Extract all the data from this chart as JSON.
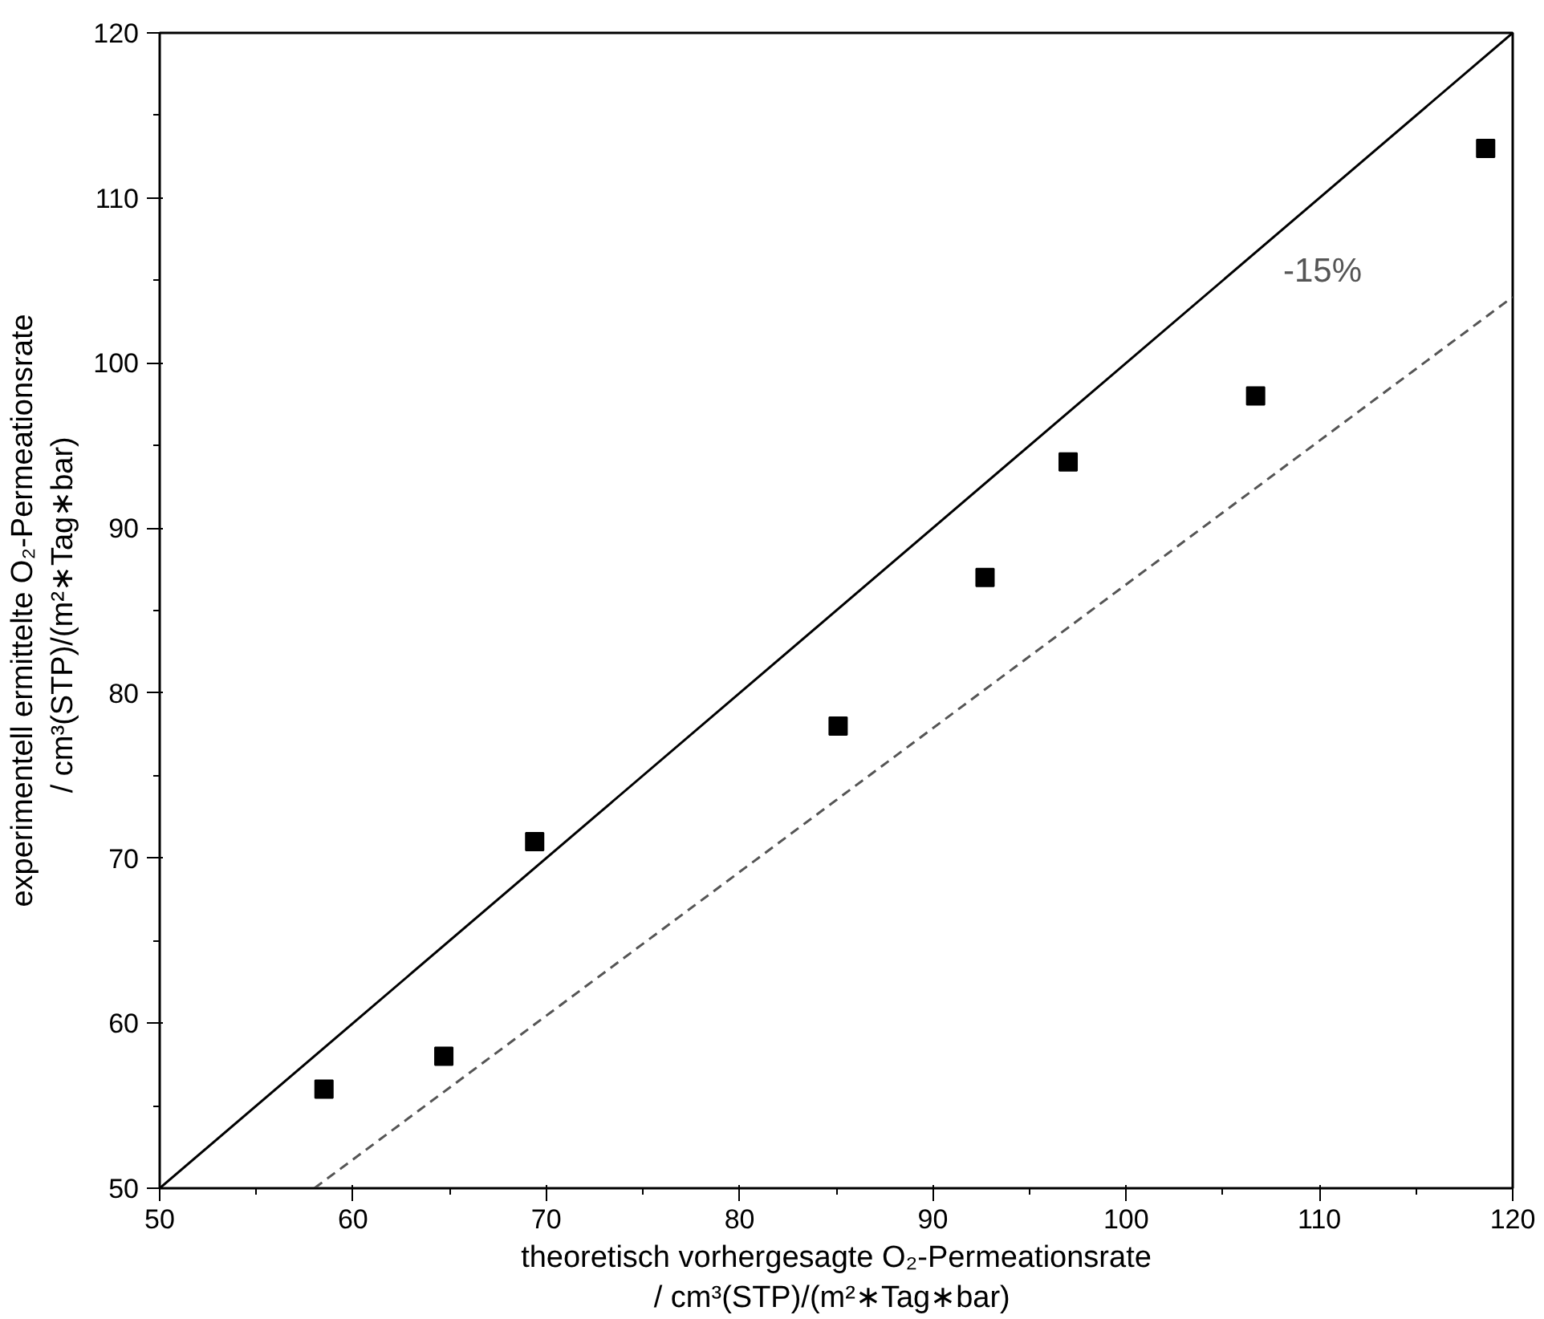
{
  "chart_data": {
    "type": "scatter",
    "xlabel": "theoretisch vorhergesagte O₂-Permeationsrate\n/  cm³(STP)/(m²∗Tag∗bar)",
    "ylabel": "experimentell ermittelte O₂-Permeationsrate\n/  cm³(STP)/(m²∗Tag∗bar)",
    "xlim": [
      50,
      120
    ],
    "ylim": [
      50,
      120
    ],
    "xticks": [
      50,
      60,
      70,
      80,
      90,
      100,
      110,
      120
    ],
    "yticks": [
      50,
      60,
      70,
      80,
      90,
      100,
      110,
      120
    ],
    "grid": false,
    "series": [
      {
        "color": "#000000",
        "marker": "square",
        "x": [
          58.5,
          64.7,
          69.4,
          85.1,
          92.7,
          97.0,
          106.7,
          118.6
        ],
        "values": [
          56,
          58,
          71,
          78,
          87,
          94,
          98,
          113
        ]
      },
      {
        "type": "line",
        "color": "#000000",
        "line_style": "solid",
        "x": [
          50,
          120
        ],
        "values": [
          50,
          120
        ]
      },
      {
        "type": "line",
        "color": "#555555",
        "line_style": "dashed",
        "x": [
          58,
          120
        ],
        "values": [
          50,
          104
        ]
      }
    ],
    "annotations": [
      "-15%"
    ]
  }
}
